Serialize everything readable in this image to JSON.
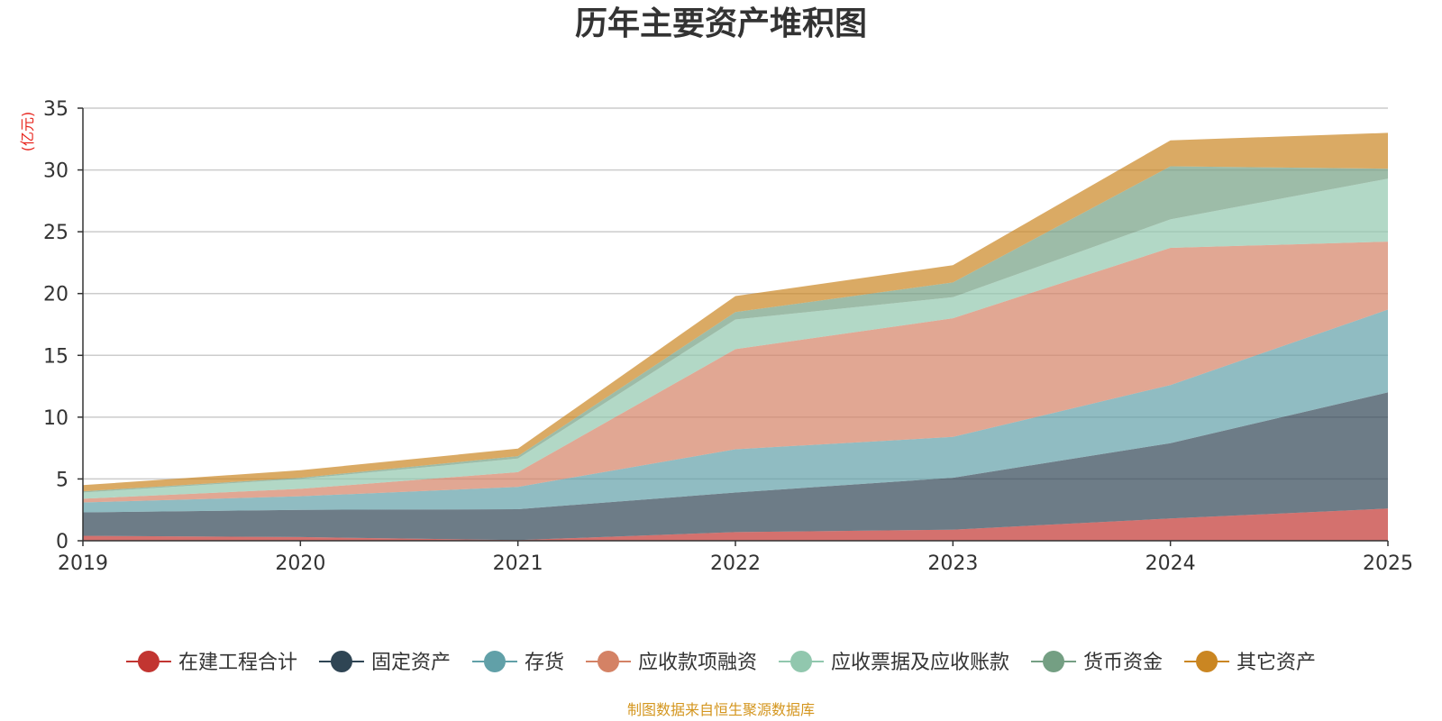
{
  "chart_data": {
    "type": "area",
    "stacked": true,
    "title": "历年主要资产堆积图",
    "ylabel": "(亿元)",
    "xlabel": "",
    "ylim": [
      0,
      35
    ],
    "yticks": [
      0,
      5,
      10,
      15,
      20,
      25,
      30,
      35
    ],
    "categories": [
      "2019",
      "2020",
      "2021",
      "2022",
      "2023",
      "2024",
      "2025"
    ],
    "grid": true,
    "legend_position": "bottom",
    "series": [
      {
        "name": "在建工程合计",
        "color": "#c23531",
        "values": [
          0.4,
          0.3,
          0.05,
          0.7,
          0.9,
          1.8,
          2.6
        ]
      },
      {
        "name": "固定资产",
        "color": "#2f4554",
        "values": [
          1.9,
          2.2,
          2.5,
          3.2,
          4.2,
          6.1,
          9.4
        ]
      },
      {
        "name": "存货",
        "color": "#61a0a8",
        "values": [
          0.8,
          1.1,
          1.8,
          3.5,
          3.3,
          4.7,
          6.7
        ]
      },
      {
        "name": "应收款项融资",
        "color": "#d48265",
        "values": [
          0.3,
          0.6,
          1.2,
          8.1,
          9.6,
          11.1,
          5.5
        ]
      },
      {
        "name": "应收票据及应收账款",
        "color": "#91c7ae",
        "values": [
          0.5,
          0.8,
          1.1,
          2.4,
          1.7,
          2.3,
          5.1
        ]
      },
      {
        "name": "货币资金",
        "color": "#749f83",
        "values": [
          0.1,
          0.1,
          0.2,
          0.6,
          1.2,
          4.3,
          0.8
        ]
      },
      {
        "name": "其它资产",
        "color": "#ca8622",
        "values": [
          0.5,
          0.6,
          0.6,
          1.3,
          1.4,
          2.1,
          2.9
        ]
      }
    ]
  },
  "source": "制图数据来自恒生聚源数据库"
}
